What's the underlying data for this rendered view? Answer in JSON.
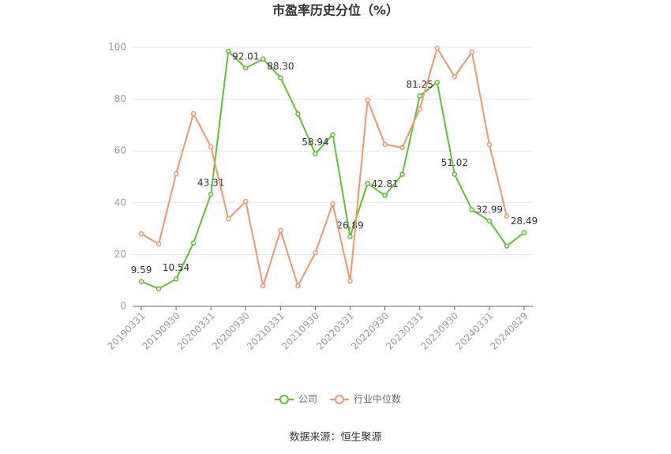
{
  "chart_data": {
    "type": "line",
    "title": "市盈率历史分位（%）",
    "categories": [
      "20190331",
      null,
      "20190930",
      null,
      "20200331",
      null,
      "20200930",
      null,
      "20210331",
      null,
      "20210930",
      null,
      "20220331",
      null,
      "20220930",
      null,
      "20230331",
      null,
      "20230930",
      null,
      "20240331",
      null,
      "20240829"
    ],
    "series": [
      {
        "name": "公司",
        "color": "#5cc42f",
        "values": [
          9.59,
          6.8,
          10.54,
          24.5,
          43.31,
          98.5,
          92.01,
          95.5,
          88.3,
          74.3,
          58.94,
          66.3,
          26.89,
          47.5,
          42.81,
          51.0,
          81.25,
          86.5,
          51.02,
          37.3,
          32.99,
          23.3,
          28.49
        ],
        "value_labels": [
          "9.59",
          null,
          "10.54",
          null,
          "43.31",
          null,
          "92.01",
          null,
          "88.30",
          null,
          "58.94",
          null,
          "26.89",
          null,
          "42.81",
          null,
          "81.25",
          null,
          "51.02",
          null,
          "32.99",
          null,
          "28.49"
        ]
      },
      {
        "name": "行业中位数",
        "color": "#f4956a",
        "values": [
          28.0,
          24.1,
          51.2,
          74.4,
          61.6,
          33.8,
          40.5,
          7.9,
          29.3,
          7.9,
          20.7,
          39.6,
          9.8,
          79.6,
          62.5,
          61.3,
          76.2,
          99.7,
          88.7,
          98.2,
          62.5,
          34.8,
          null
        ]
      }
    ],
    "ylim": [
      0,
      100
    ],
    "yticks": [
      0,
      20,
      40,
      60,
      80,
      100
    ],
    "grid": true,
    "legend": "bottom",
    "source": "数据来源：恒生聚源"
  }
}
